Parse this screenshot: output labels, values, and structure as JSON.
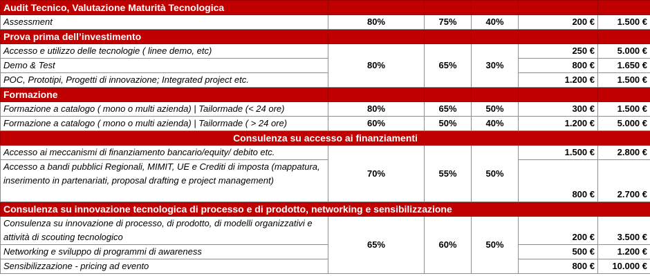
{
  "sections": {
    "s1": {
      "title": "Audit Tecnico, Valutazione Maturità Tecnologica"
    },
    "s2": {
      "title": "Prova prima dell’investimento"
    },
    "s3": {
      "title": "Formazione"
    },
    "s4": {
      "title": "Consulenza su accesso ai finanziamenti"
    },
    "s5": {
      "title": "Consulenza su innovazione tecnologica di processo e di prodotto, networking e sensibilizzazione"
    }
  },
  "rows": {
    "r1": {
      "desc": "Assessment",
      "p1": "80%",
      "p2": "75%",
      "p3": "40%",
      "min": "200 €",
      "max": "1.500 €"
    },
    "r2": {
      "desc": "Accesso e utilizzo delle tecnologie ( linee demo, etc)",
      "min": "250 €",
      "max": "5.000 €"
    },
    "r3": {
      "desc": "Demo & Test",
      "min": "800 €",
      "max": "1.650 €"
    },
    "r4": {
      "desc": "POC, Prototipi, Progetti di innovazione; Integrated project etc.",
      "min": "1.200 €",
      "max": "1.500 €"
    },
    "g2": {
      "p1": "80%",
      "p2": "65%",
      "p3": "30%"
    },
    "r5": {
      "desc": "Formazione a catalogo ( mono o multi azienda) | Tailormade (<  24 ore)",
      "p1": "80%",
      "p2": "65%",
      "p3": "50%",
      "min": "300 €",
      "max": "1.500 €"
    },
    "r6": {
      "desc": "Formazione a catalogo ( mono o multi azienda) | Tailormade ( > 24 ore)",
      "p1": "60%",
      "p2": "50%",
      "p3": "40%",
      "min": "1.200 €",
      "max": "5.000 €"
    },
    "r7": {
      "desc": "Accesso ai meccanismi di finanziamento bancario/equity/ debito etc.",
      "min": "1.500 €",
      "max": "2.800 €"
    },
    "r8": {
      "desc": "Accesso a bandi pubblici Regionali, MIMIT, UE e Crediti di imposta (mappatura, inserimento in partenariati, proposal drafting e project management)",
      "min": "800 €",
      "max": "2.700 €"
    },
    "g4": {
      "p1": "70%",
      "p2": "55%",
      "p3": "50%"
    },
    "r9": {
      "desc": "Consulenza su innovazione di processo, di prodotto, di modelli organizzativi e attività di scouting tecnologico",
      "min": "200 €",
      "max": "3.500 €"
    },
    "r10": {
      "desc": "Networking e sviluppo di programmi di awareness",
      "min": "500 €",
      "max": "1.200 €"
    },
    "r11": {
      "desc": "Sensibilizzazione - pricing ad evento",
      "min": "800 €",
      "max": "10.000 €"
    },
    "g5": {
      "p1": "65%",
      "p2": "60%",
      "p3": "50%"
    }
  }
}
